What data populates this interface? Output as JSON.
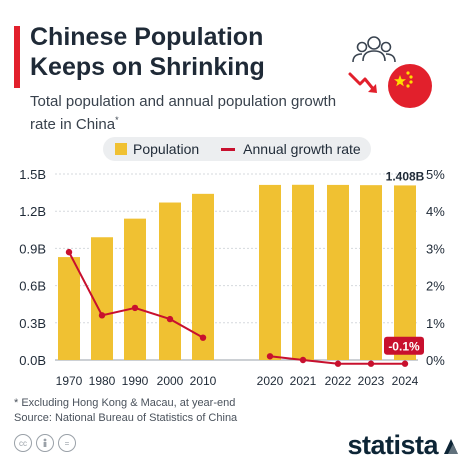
{
  "header": {
    "title": "Chinese Population Keeps on Shrinking",
    "subtitle": "Total population and annual population growth rate in China",
    "subtitle_mark": "*"
  },
  "icons": [
    "people-icon",
    "downward-arrow-icon",
    "china-flag-icon"
  ],
  "legend": {
    "population": "Population",
    "growth": "Annual growth rate"
  },
  "colors": {
    "bar": "#f0c132",
    "line": "#c8102e",
    "accent": "#e2202c",
    "brand": "#0d2536"
  },
  "chart_data": {
    "type": "bar",
    "categories": [
      "1970",
      "1980",
      "1990",
      "2000",
      "2010",
      "2020",
      "2021",
      "2022",
      "2023",
      "2024"
    ],
    "series": [
      {
        "name": "Population",
        "type": "bar",
        "axis": "left",
        "values": [
          0.83,
          0.99,
          1.14,
          1.27,
          1.34,
          1.412,
          1.413,
          1.412,
          1.41,
          1.408
        ]
      },
      {
        "name": "Annual growth rate",
        "type": "line",
        "axis": "right",
        "values": [
          2.9,
          1.2,
          1.4,
          1.1,
          0.6,
          0.1,
          0.0,
          -0.1,
          -0.1,
          -0.1
        ]
      }
    ],
    "left_axis": {
      "ticks": [
        "0.0B",
        "0.3B",
        "0.6B",
        "0.9B",
        "1.2B",
        "1.5B"
      ],
      "ylim": [
        0,
        1.5
      ]
    },
    "right_axis": {
      "ticks": [
        "0%",
        "1%",
        "2%",
        "3%",
        "4%",
        "5%"
      ],
      "ylim": [
        0,
        5
      ]
    },
    "annotations": {
      "last_population": "1.408B",
      "last_growth": "-0.1%"
    },
    "legend_position": "top",
    "grid": true
  },
  "footer": {
    "note": "* Excluding Hong Kong & Macau, at year-end",
    "source": "Source: National Bureau of Statistics of China",
    "license_icons": [
      "cc-icon",
      "attribution-icon",
      "no-derivatives-icon"
    ],
    "brand": "statista"
  }
}
